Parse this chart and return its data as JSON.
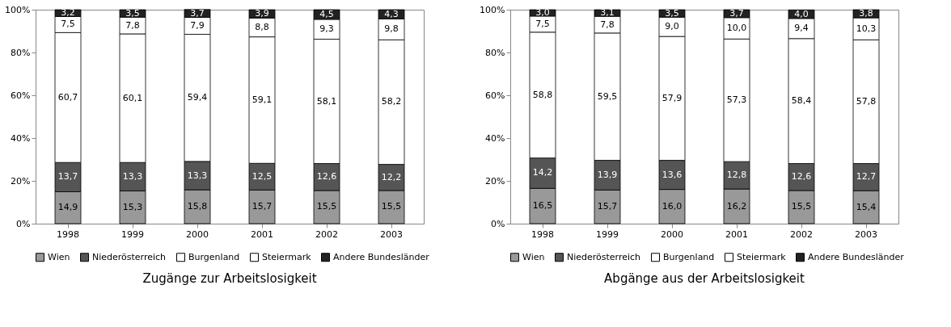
{
  "chart_data": [
    {
      "type": "bar",
      "stacked": true,
      "title": "Zugänge zur Arbeitslosigkeit",
      "categories": [
        "1998",
        "1999",
        "2000",
        "2001",
        "2002",
        "2003"
      ],
      "series": [
        {
          "name": "Wien",
          "color": "#999999",
          "values": [
            14.9,
            15.3,
            15.8,
            15.7,
            15.5,
            15.5
          ],
          "value_labels": [
            "14,9",
            "15,3",
            "15,8",
            "15,7",
            "15,5",
            "15,5"
          ]
        },
        {
          "name": "Niederösterreich",
          "color": "#555555",
          "values": [
            13.7,
            13.3,
            13.3,
            12.5,
            12.6,
            12.2
          ],
          "value_labels": [
            "13,7",
            "13,3",
            "13,3",
            "12,5",
            "12,6",
            "12,2"
          ]
        },
        {
          "name": "Burgenland",
          "color": "#ffffff",
          "values": [
            60.7,
            60.1,
            59.4,
            59.1,
            58.1,
            58.2
          ],
          "value_labels": [
            "60,7",
            "60,1",
            "59,4",
            "59,1",
            "58,1",
            "58,2"
          ]
        },
        {
          "name": "Steiermark",
          "color": "#ffffff",
          "values": [
            7.5,
            7.8,
            7.9,
            8.8,
            9.3,
            9.8
          ],
          "value_labels": [
            "7,5",
            "7,8",
            "7,9",
            "8,8",
            "9,3",
            "9,8"
          ]
        },
        {
          "name": "Andere Bundesländer",
          "color": "#222222",
          "values": [
            3.2,
            3.5,
            3.7,
            3.9,
            4.5,
            4.3
          ],
          "value_labels": [
            "3,2",
            "3,5",
            "3,7",
            "3,9",
            "4,5",
            "4,3"
          ]
        }
      ],
      "ylim": [
        0,
        100
      ],
      "yticks": [
        {
          "value": 0,
          "label": "0%"
        },
        {
          "value": 20,
          "label": "20%"
        },
        {
          "value": 40,
          "label": "40%"
        },
        {
          "value": 60,
          "label": "60%"
        },
        {
          "value": 80,
          "label": "80%"
        },
        {
          "value": 100,
          "label": "100%"
        }
      ],
      "legend": "bottom",
      "grid": false
    },
    {
      "type": "bar",
      "stacked": true,
      "title": "Abgänge aus der Arbeitslosigkeit",
      "categories": [
        "1998",
        "1999",
        "2000",
        "2001",
        "2002",
        "2003"
      ],
      "series": [
        {
          "name": "Wien",
          "color": "#999999",
          "values": [
            16.5,
            15.7,
            16.0,
            16.2,
            15.5,
            15.4
          ],
          "value_labels": [
            "16,5",
            "15,7",
            "16,0",
            "16,2",
            "15,5",
            "15,4"
          ]
        },
        {
          "name": "Niederösterreich",
          "color": "#555555",
          "values": [
            14.2,
            13.9,
            13.6,
            12.8,
            12.6,
            12.7
          ],
          "value_labels": [
            "14,2",
            "13,9",
            "13,6",
            "12,8",
            "12,6",
            "12,7"
          ]
        },
        {
          "name": "Burgenland",
          "color": "#ffffff",
          "values": [
            58.8,
            59.5,
            57.9,
            57.3,
            58.4,
            57.8
          ],
          "value_labels": [
            "58,8",
            "59,5",
            "57,9",
            "57,3",
            "58,4",
            "57,8"
          ]
        },
        {
          "name": "Steiermark",
          "color": "#ffffff",
          "values": [
            7.5,
            7.8,
            9.0,
            10.0,
            9.4,
            10.3
          ],
          "value_labels": [
            "7,5",
            "7,8",
            "9,0",
            "10,0",
            "9,4",
            "10,3"
          ]
        },
        {
          "name": "Andere Bundesländer",
          "color": "#222222",
          "values": [
            3.0,
            3.1,
            3.5,
            3.7,
            4.0,
            3.8
          ],
          "value_labels": [
            "3,0",
            "3,1",
            "3,5",
            "3,7",
            "4,0",
            "3,8"
          ]
        }
      ],
      "ylim": [
        0,
        100
      ],
      "yticks": [
        {
          "value": 0,
          "label": "0%"
        },
        {
          "value": 20,
          "label": "20%"
        },
        {
          "value": 40,
          "label": "40%"
        },
        {
          "value": 60,
          "label": "60%"
        },
        {
          "value": 80,
          "label": "80%"
        },
        {
          "value": 100,
          "label": "100%"
        }
      ],
      "legend": "bottom",
      "grid": false
    }
  ]
}
